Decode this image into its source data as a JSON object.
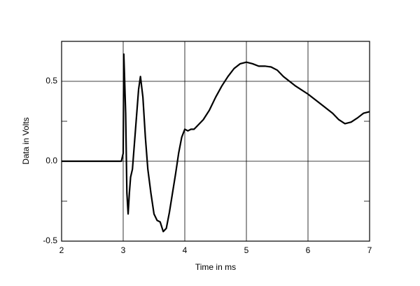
{
  "chart_data": {
    "type": "line",
    "x_label": "Time in ms",
    "y_label": "Data in Volts",
    "xlim": [
      2,
      7
    ],
    "ylim": [
      -0.5,
      0.75
    ],
    "xticks": [
      2,
      3,
      4,
      5,
      6,
      7
    ],
    "yticks": [
      -0.5,
      {
        "value": 0,
        "label": "0.0"
      },
      0.5
    ],
    "y_minor_ticks": [
      -0.25,
      0.25
    ],
    "grid": true,
    "series": [
      {
        "color": "#000000",
        "x": [
          2,
          2.5,
          2.95,
          2.97,
          3.0,
          3.01,
          3.02,
          3.04,
          3.06,
          3.08,
          3.1,
          3.12,
          3.15,
          3.2,
          3.25,
          3.28,
          3.32,
          3.36,
          3.4,
          3.45,
          3.5,
          3.55,
          3.6,
          3.65,
          3.7,
          3.75,
          3.8,
          3.85,
          3.9,
          3.95,
          4.0,
          4.05,
          4.1,
          4.15,
          4.2,
          4.3,
          4.4,
          4.5,
          4.6,
          4.7,
          4.8,
          4.9,
          5.0,
          5.1,
          5.2,
          5.3,
          5.4,
          5.5,
          5.6,
          5.8,
          6.0,
          6.2,
          6.4,
          6.5,
          6.6,
          6.7,
          6.8,
          6.9,
          7.0
        ],
        "values": [
          0,
          0,
          0,
          0,
          0.05,
          0.67,
          0.55,
          0.3,
          -0.2,
          -0.33,
          -0.2,
          -0.1,
          -0.05,
          0.2,
          0.45,
          0.53,
          0.4,
          0.15,
          -0.05,
          -0.2,
          -0.33,
          -0.37,
          -0.38,
          -0.44,
          -0.42,
          -0.32,
          -0.2,
          -0.08,
          0.05,
          0.15,
          0.2,
          0.19,
          0.2,
          0.2,
          0.22,
          0.26,
          0.32,
          0.4,
          0.47,
          0.53,
          0.58,
          0.61,
          0.62,
          0.61,
          0.595,
          0.595,
          0.59,
          0.57,
          0.53,
          0.47,
          0.42,
          0.36,
          0.3,
          0.26,
          0.235,
          0.245,
          0.27,
          0.3,
          0.31
        ]
      }
    ]
  }
}
